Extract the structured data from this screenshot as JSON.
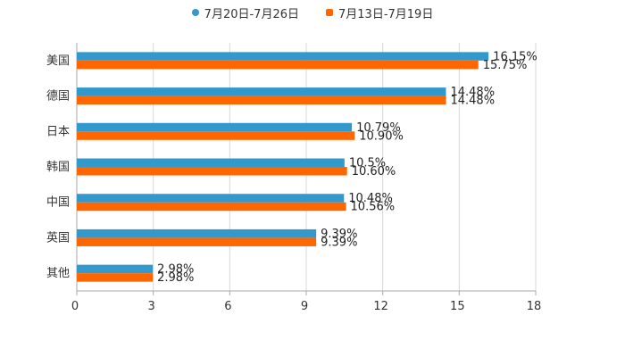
{
  "colors": {
    "series1": "#3399cc",
    "series2": "#ff6600",
    "grid": "#d8d8d8",
    "axis": "#aaaaaa",
    "text": "#333333"
  },
  "chart_data": {
    "type": "bar",
    "orientation": "horizontal",
    "title": "",
    "xlabel": "",
    "ylabel": "",
    "xlim": [
      0,
      18
    ],
    "x_ticks": [
      0,
      3,
      6,
      9,
      12,
      15,
      18
    ],
    "grid": true,
    "legend_position": "top-center",
    "categories": [
      "美国",
      "德国",
      "日本",
      "韩国",
      "中国",
      "英国",
      "其他"
    ],
    "series": [
      {
        "name": "7月20日-7月26日",
        "values": [
          16.15,
          14.48,
          10.79,
          10.5,
          10.48,
          9.39,
          2.98
        ],
        "labels": [
          "16.15%",
          "14.48%",
          "10.79%",
          "10.5%",
          "10.48%",
          "9.39%",
          "2.98%"
        ]
      },
      {
        "name": "7月13日-7月19日",
        "values": [
          15.75,
          14.48,
          10.9,
          10.6,
          10.56,
          9.39,
          2.98
        ],
        "labels": [
          "15.75%",
          "14.48%",
          "10.90%",
          "10.60%",
          "10.56%",
          "9.39%",
          "2.98%"
        ]
      }
    ]
  }
}
